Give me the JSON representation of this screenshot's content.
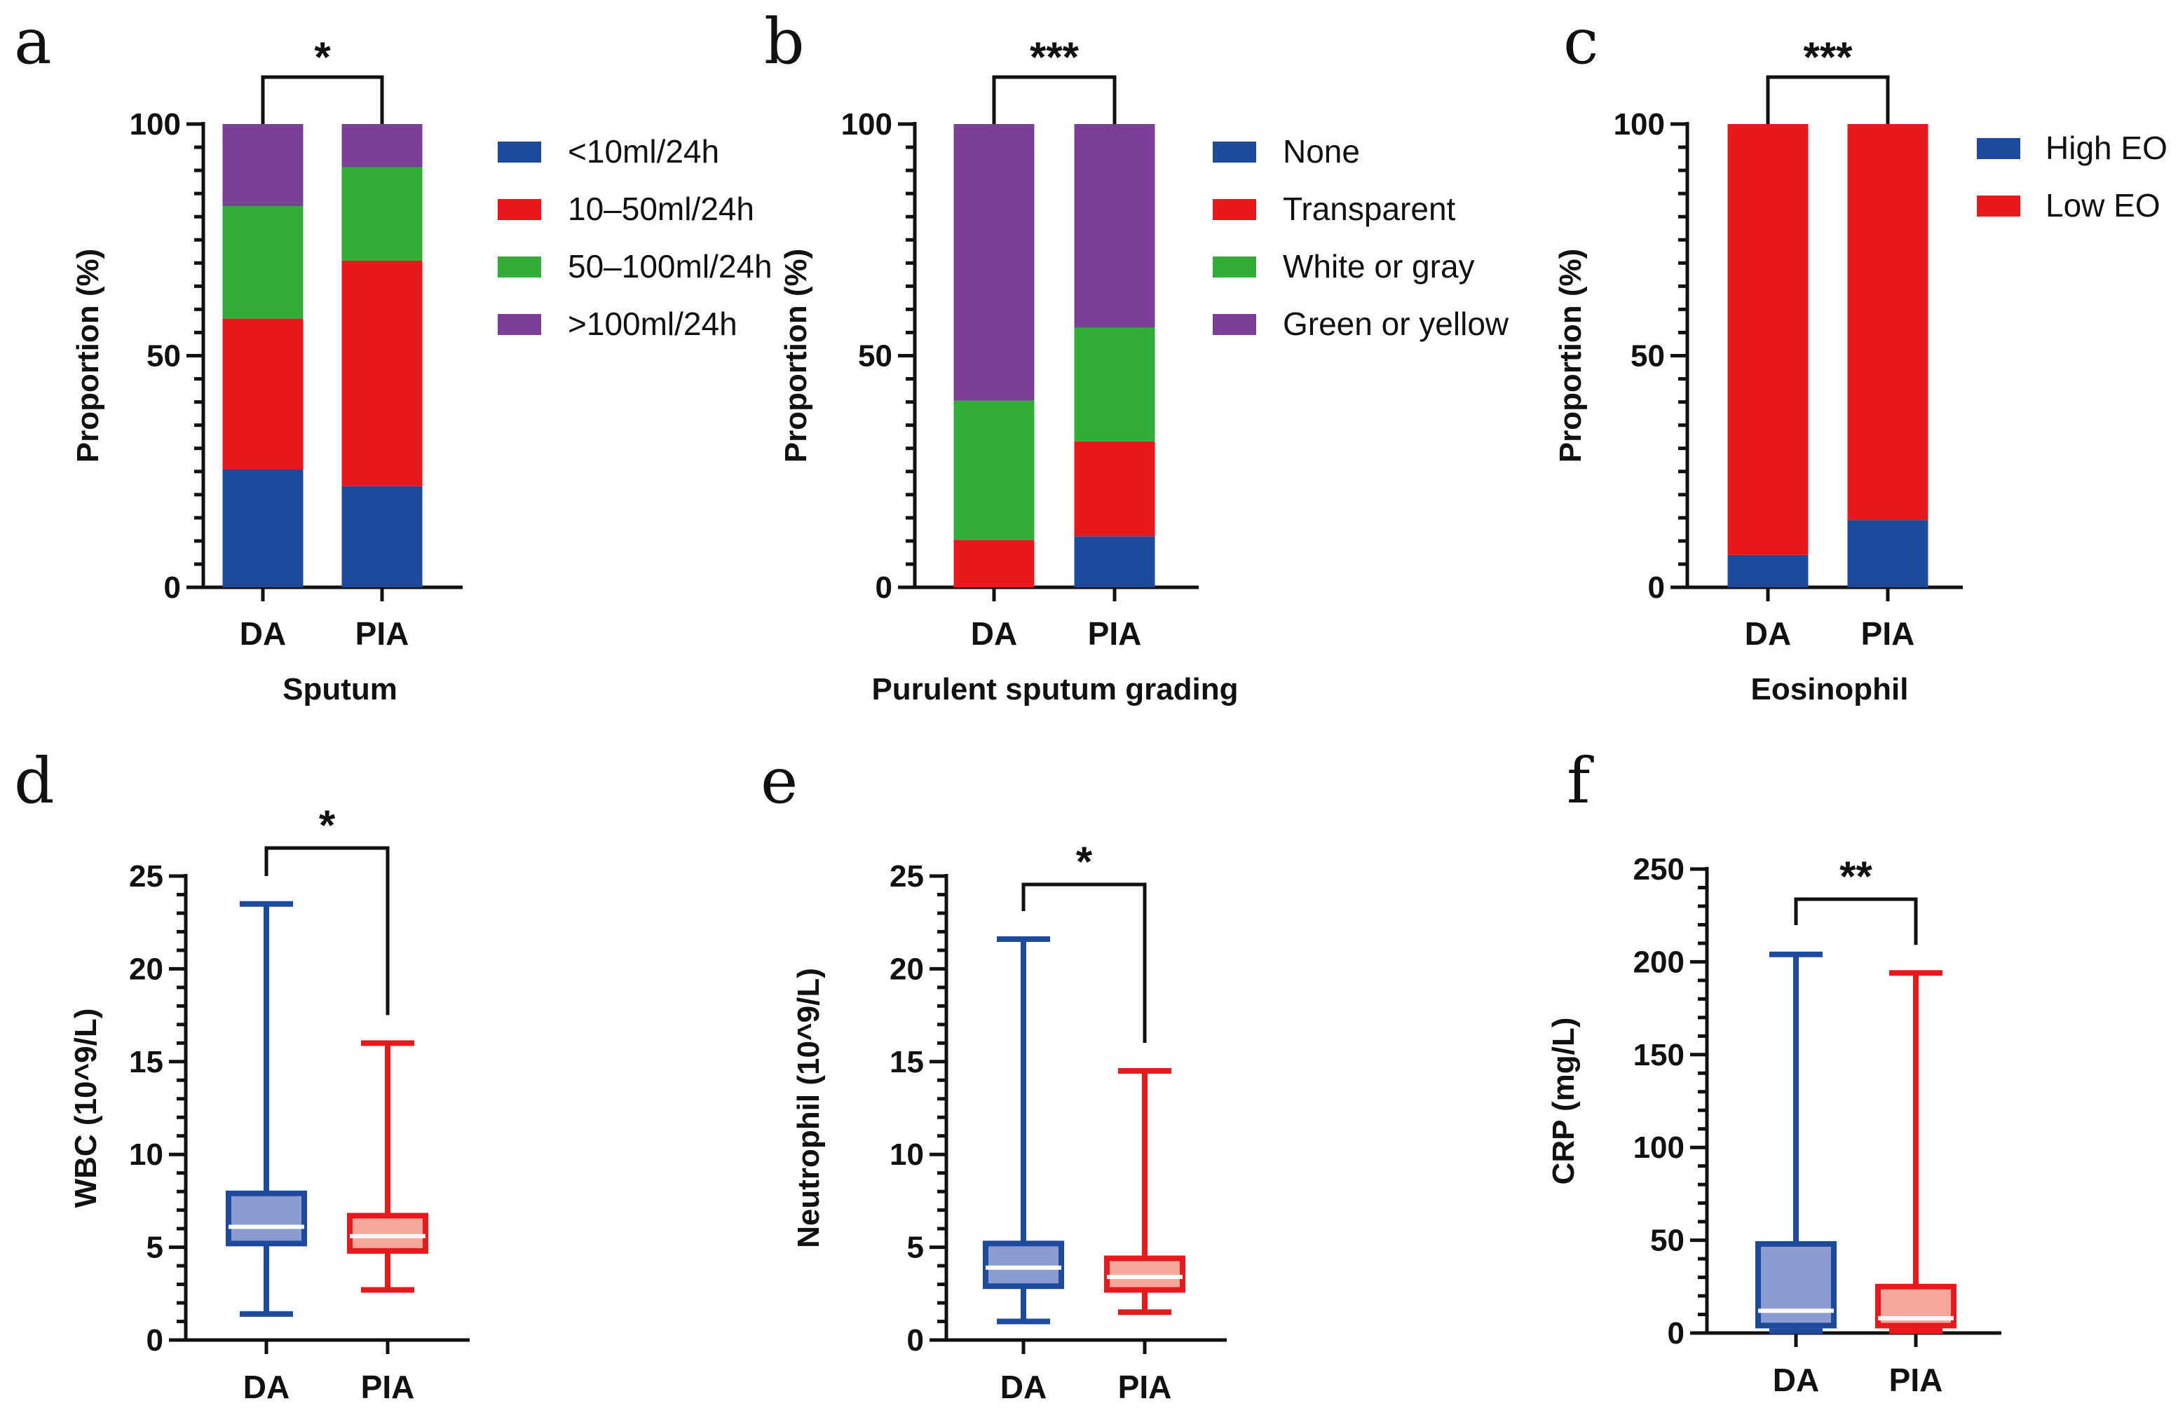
{
  "colors": {
    "blue": "#1E4A9C",
    "red": "#E8191D",
    "green": "#33AD3A",
    "purple": "#7B3F98",
    "blue_fill": "#8C9BD1",
    "red_fill": "#F5A89A"
  },
  "chart_data": [
    {
      "id": "a",
      "letter": "a",
      "type": "bar",
      "stacked": true,
      "categories": [
        "DA",
        "PIA"
      ],
      "xlabel": "Sputum",
      "ylabel": "Proportion (%)",
      "ylim": [
        0,
        100
      ],
      "yticks": [
        "0",
        "50",
        "100"
      ],
      "significance": "*",
      "series": [
        {
          "name": "<10ml/24h",
          "color": "#1E4A9C",
          "values": [
            25.5,
            21.8
          ]
        },
        {
          "name": "10–50ml/24h",
          "color": "#E8191D",
          "values": [
            32.5,
            48.7
          ]
        },
        {
          "name": "50–100ml/24h",
          "color": "#33AD3A",
          "values": [
            24.3,
            20.2
          ]
        },
        {
          "name": ">100ml/24h",
          "color": "#7B3F98",
          "values": [
            17.7,
            9.3
          ]
        }
      ]
    },
    {
      "id": "b",
      "letter": "b",
      "type": "bar",
      "stacked": true,
      "categories": [
        "DA",
        "PIA"
      ],
      "xlabel": "Purulent sputum grading",
      "ylabel": "Proportion (%)",
      "ylim": [
        0,
        100
      ],
      "yticks": [
        "0",
        "50",
        "100"
      ],
      "significance": "***",
      "series": [
        {
          "name": "None",
          "color": "#1E4A9C",
          "values": [
            0,
            11.0
          ]
        },
        {
          "name": "Transparent",
          "color": "#E8191D",
          "values": [
            10.2,
            20.5
          ]
        },
        {
          "name": "White or gray",
          "color": "#33AD3A",
          "values": [
            30.1,
            24.5
          ]
        },
        {
          "name": "Green or yellow",
          "color": "#7B3F98",
          "values": [
            59.7,
            44.0
          ]
        }
      ]
    },
    {
      "id": "c",
      "letter": "c",
      "type": "bar",
      "stacked": true,
      "categories": [
        "DA",
        "PIA"
      ],
      "xlabel": "Eosinophil",
      "ylabel": "Proportion (%)",
      "ylim": [
        0,
        100
      ],
      "yticks": [
        "0",
        "50",
        "100"
      ],
      "significance": "***",
      "series": [
        {
          "name": "High EO",
          "color": "#1E4A9C",
          "values": [
            7.0,
            14.5
          ]
        },
        {
          "name": "Low EO",
          "color": "#E8191D",
          "values": [
            93.0,
            85.5
          ]
        }
      ]
    },
    {
      "id": "d",
      "letter": "d",
      "type": "box",
      "categories": [
        "DA",
        "PIA"
      ],
      "xlabel": "",
      "ylabel": "WBC (10^9/L)",
      "ylim": [
        0,
        25
      ],
      "yticks": [
        "0",
        "5",
        "10",
        "15",
        "20",
        "25"
      ],
      "significance": "*",
      "boxes": [
        {
          "name": "DA",
          "min": 1.4,
          "q1": 5.2,
          "median": 6.1,
          "q3": 7.9,
          "max": 23.5
        },
        {
          "name": "PIA",
          "min": 2.7,
          "q1": 4.8,
          "median": 5.6,
          "q3": 6.7,
          "max": 16.0
        }
      ]
    },
    {
      "id": "e",
      "letter": "e",
      "type": "box",
      "categories": [
        "DA",
        "PIA"
      ],
      "xlabel": "",
      "ylabel": "Neutrophil (10^9/L)",
      "ylim": [
        0,
        25
      ],
      "yticks": [
        "0",
        "5",
        "10",
        "15",
        "20",
        "25"
      ],
      "significance": "*",
      "boxes": [
        {
          "name": "DA",
          "min": 1.0,
          "q1": 2.9,
          "median": 3.9,
          "q3": 5.2,
          "max": 21.6
        },
        {
          "name": "PIA",
          "min": 1.5,
          "q1": 2.7,
          "median": 3.4,
          "q3": 4.4,
          "max": 14.5
        }
      ]
    },
    {
      "id": "f",
      "letter": "f",
      "type": "box",
      "categories": [
        "DA",
        "PIA"
      ],
      "xlabel": "",
      "ylabel": "CRP (mg/L)",
      "ylim": [
        0,
        250
      ],
      "yticks": [
        "0",
        "50",
        "100",
        "150",
        "200",
        "250"
      ],
      "significance": "**",
      "boxes": [
        {
          "name": "DA",
          "min": 1.0,
          "q1": 4.0,
          "median": 12.0,
          "q3": 48.0,
          "max": 204.0
        },
        {
          "name": "PIA",
          "min": 1.0,
          "q1": 4.0,
          "median": 8.0,
          "q3": 25.0,
          "max": 194.0
        }
      ]
    }
  ]
}
